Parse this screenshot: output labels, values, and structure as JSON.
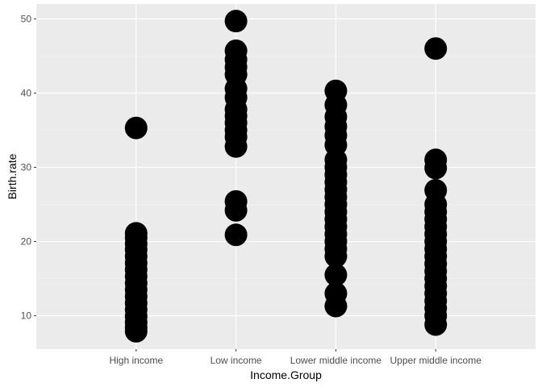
{
  "chart_data": {
    "type": "scatter",
    "title": "",
    "xlabel": "Income.Group",
    "ylabel": "Birth.rate",
    "categories": [
      "High income",
      "Low income",
      "Lower middle income",
      "Upper middle income"
    ],
    "ylim": [
      5.5,
      52
    ],
    "y_ticks": [
      10,
      20,
      30,
      40,
      50
    ],
    "grid": true,
    "legend": "none",
    "colors": {
      "panel_background": "#ebebeb",
      "grid_major": "#ffffff",
      "grid_minor": "#f5f5f5",
      "point": "#000000"
    },
    "series": [
      {
        "values": [
          {
            "x": "High income",
            "y": 35.3
          },
          {
            "x": "High income",
            "y": 21.1
          },
          {
            "x": "High income",
            "y": 20.5
          },
          {
            "x": "High income",
            "y": 19.7
          },
          {
            "x": "High income",
            "y": 18.9
          },
          {
            "x": "High income",
            "y": 18.0
          },
          {
            "x": "High income",
            "y": 17.1
          },
          {
            "x": "High income",
            "y": 16.2
          },
          {
            "x": "High income",
            "y": 15.3
          },
          {
            "x": "High income",
            "y": 14.4
          },
          {
            "x": "High income",
            "y": 13.5
          },
          {
            "x": "High income",
            "y": 12.6
          },
          {
            "x": "High income",
            "y": 11.7
          },
          {
            "x": "High income",
            "y": 10.8
          },
          {
            "x": "High income",
            "y": 9.9
          },
          {
            "x": "High income",
            "y": 9.1
          },
          {
            "x": "High income",
            "y": 8.4
          },
          {
            "x": "High income",
            "y": 7.9
          },
          {
            "x": "Low income",
            "y": 49.7
          },
          {
            "x": "Low income",
            "y": 45.7
          },
          {
            "x": "Low income",
            "y": 44.5
          },
          {
            "x": "Low income",
            "y": 43.5
          },
          {
            "x": "Low income",
            "y": 42.5
          },
          {
            "x": "Low income",
            "y": 40.6
          },
          {
            "x": "Low income",
            "y": 39.4
          },
          {
            "x": "Low income",
            "y": 37.8
          },
          {
            "x": "Low income",
            "y": 36.9
          },
          {
            "x": "Low income",
            "y": 36.0
          },
          {
            "x": "Low income",
            "y": 35.0
          },
          {
            "x": "Low income",
            "y": 34.1
          },
          {
            "x": "Low income",
            "y": 32.8
          },
          {
            "x": "Low income",
            "y": 25.4
          },
          {
            "x": "Low income",
            "y": 24.2
          },
          {
            "x": "Low income",
            "y": 20.9
          },
          {
            "x": "Lower middle income",
            "y": 40.3
          },
          {
            "x": "Lower middle income",
            "y": 38.4
          },
          {
            "x": "Lower middle income",
            "y": 36.8
          },
          {
            "x": "Lower middle income",
            "y": 35.5
          },
          {
            "x": "Lower middle income",
            "y": 34.3
          },
          {
            "x": "Lower middle income",
            "y": 33.0
          },
          {
            "x": "Lower middle income",
            "y": 31.0
          },
          {
            "x": "Lower middle income",
            "y": 30.0
          },
          {
            "x": "Lower middle income",
            "y": 29.0
          },
          {
            "x": "Lower middle income",
            "y": 28.0
          },
          {
            "x": "Lower middle income",
            "y": 27.0
          },
          {
            "x": "Lower middle income",
            "y": 26.0
          },
          {
            "x": "Lower middle income",
            "y": 25.0
          },
          {
            "x": "Lower middle income",
            "y": 24.0
          },
          {
            "x": "Lower middle income",
            "y": 23.0
          },
          {
            "x": "Lower middle income",
            "y": 22.0
          },
          {
            "x": "Lower middle income",
            "y": 21.0
          },
          {
            "x": "Lower middle income",
            "y": 20.0
          },
          {
            "x": "Lower middle income",
            "y": 19.0
          },
          {
            "x": "Lower middle income",
            "y": 18.0
          },
          {
            "x": "Lower middle income",
            "y": 15.5
          },
          {
            "x": "Lower middle income",
            "y": 13.0
          },
          {
            "x": "Lower middle income",
            "y": 11.3
          },
          {
            "x": "Upper middle income",
            "y": 46.0
          },
          {
            "x": "Upper middle income",
            "y": 31.0
          },
          {
            "x": "Upper middle income",
            "y": 29.9
          },
          {
            "x": "Upper middle income",
            "y": 26.9
          },
          {
            "x": "Upper middle income",
            "y": 25.0
          },
          {
            "x": "Upper middle income",
            "y": 24.0
          },
          {
            "x": "Upper middle income",
            "y": 23.0
          },
          {
            "x": "Upper middle income",
            "y": 22.0
          },
          {
            "x": "Upper middle income",
            "y": 21.0
          },
          {
            "x": "Upper middle income",
            "y": 20.0
          },
          {
            "x": "Upper middle income",
            "y": 19.0
          },
          {
            "x": "Upper middle income",
            "y": 18.0
          },
          {
            "x": "Upper middle income",
            "y": 17.0
          },
          {
            "x": "Upper middle income",
            "y": 16.0
          },
          {
            "x": "Upper middle income",
            "y": 15.0
          },
          {
            "x": "Upper middle income",
            "y": 14.0
          },
          {
            "x": "Upper middle income",
            "y": 13.0
          },
          {
            "x": "Upper middle income",
            "y": 12.0
          },
          {
            "x": "Upper middle income",
            "y": 11.0
          },
          {
            "x": "Upper middle income",
            "y": 10.0
          },
          {
            "x": "Upper middle income",
            "y": 8.8
          }
        ]
      }
    ]
  }
}
